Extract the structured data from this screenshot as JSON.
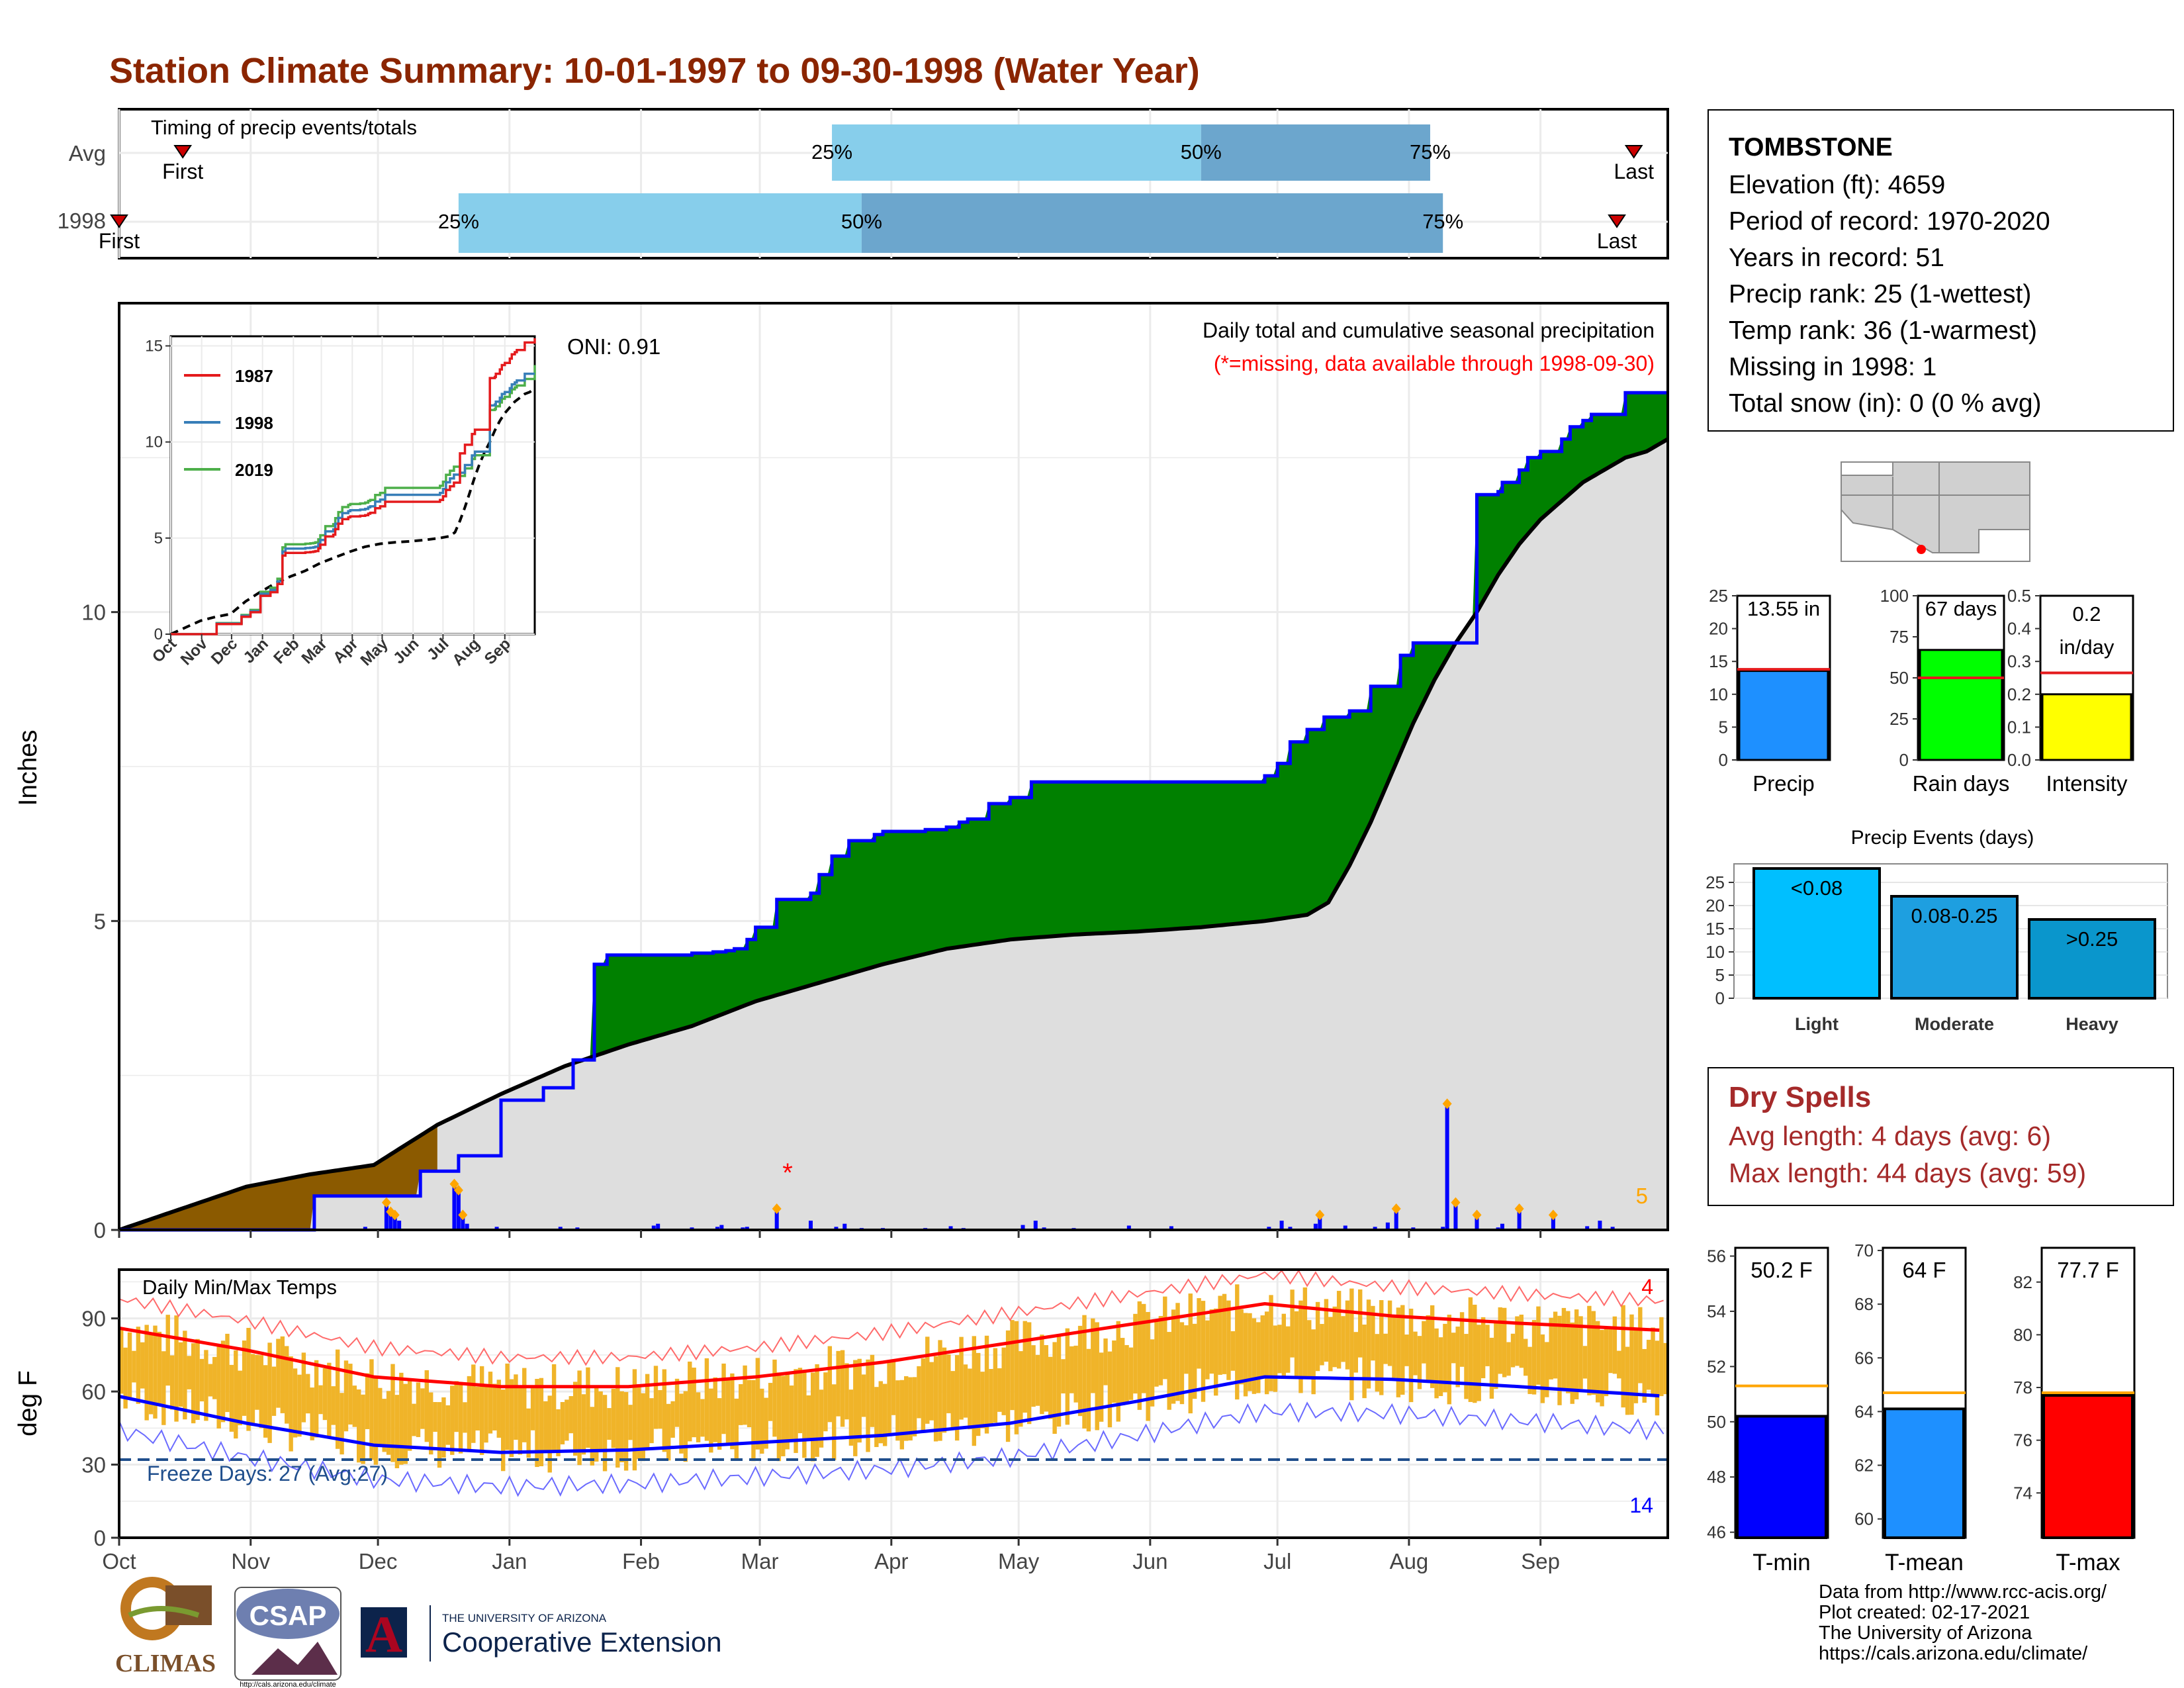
{
  "title": "Station Climate Summary: 10-01-1997 to 09-30-1998 (Water Year)",
  "colors": {
    "title": "#8B2500",
    "accent_red": "#a52a2a",
    "precip_blue": "#1E90FF",
    "rain_green": "#00FF00",
    "intensity_yellow": "#FFFF00",
    "avg_line": "#FFA500"
  },
  "months": [
    "Oct",
    "Nov",
    "Dec",
    "Jan",
    "Feb",
    "Mar",
    "Apr",
    "May",
    "Jun",
    "Jul",
    "Aug",
    "Sep"
  ],
  "timing": {
    "label": "Timing of precip events/totals",
    "rows": [
      {
        "name": "Avg",
        "first_label": "First",
        "last_label": "Last",
        "first_doy": 15,
        "last_doy": 357,
        "q25_doy": 168,
        "q50_doy": 255,
        "q75_doy": 309,
        "q25_label": "25%",
        "q50_label": "50%",
        "q75_label": "75%"
      },
      {
        "name": "1998",
        "first_label": "First",
        "last_label": "Last",
        "first_doy": 0,
        "last_doy": 353,
        "q25_doy": 80,
        "q50_doy": 175,
        "q75_doy": 312,
        "q25_label": "25%",
        "q50_label": "50%",
        "q75_label": "75%"
      }
    ]
  },
  "precip_panel": {
    "ylabel": "Inches",
    "y_ticks": [
      "0",
      "5",
      "10"
    ],
    "header": "Daily total and cumulative seasonal precipitation",
    "missing_note": "(*=missing, data available through 1998-09-30)",
    "oni": "ONI: 0.91",
    "count_label": "5"
  },
  "inset": {
    "y_ticks": [
      "0",
      "5",
      "10",
      "15"
    ],
    "x_ticks": [
      "Oct",
      "Nov",
      "Dec",
      "Jan",
      "Feb",
      "Mar",
      "Apr",
      "May",
      "Jun",
      "Jul",
      "Aug",
      "Sep"
    ],
    "legend": [
      {
        "name": "1987",
        "color": "#e41a1c"
      },
      {
        "name": "1998",
        "color": "#377eb8"
      },
      {
        "name": "2019",
        "color": "#4daf4a"
      }
    ]
  },
  "temp_panel": {
    "ylabel": "deg F",
    "y_ticks": [
      "0",
      "30",
      "60",
      "90"
    ],
    "header": "Daily Min/Max Temps",
    "freeze_label": "Freeze Days: 27 (Avg:27)",
    "hot_count": "4",
    "cold_count": "14"
  },
  "station": {
    "name": "TOMBSTONE",
    "lines": [
      "Elevation (ft): 4659",
      "Period of record: 1970-2020",
      "Years in record: 51",
      "Precip rank: 25 (1-wettest)",
      "Temp rank: 36 (1-warmest)",
      "Missing in 1998: 1",
      "Total snow (in): 0 (0 % avg)"
    ]
  },
  "mini_bars": [
    {
      "id": "precip",
      "label": "Precip",
      "value_label": "13.55 in",
      "value": 13.55,
      "avg": 13.8,
      "ymax": 25,
      "ticks": [
        "0",
        "5",
        "10",
        "15",
        "20",
        "25"
      ],
      "color": "#1E90FF",
      "avg_color": "#e41a1c"
    },
    {
      "id": "raindays",
      "label": "Rain days",
      "value_label": "67 days",
      "value": 67,
      "avg": 50,
      "ymax": 100,
      "ticks": [
        "0",
        "25",
        "50",
        "75",
        "100"
      ],
      "color": "#00FF00",
      "avg_color": "#e41a1c"
    },
    {
      "id": "intensity",
      "label": "Intensity",
      "value_label": "0.2 in/day",
      "value_label_1": "0.2",
      "value_label_2": "in/day",
      "value": 0.2,
      "avg": 0.265,
      "ymax": 0.5,
      "ticks": [
        "0.0",
        "0.1",
        "0.2",
        "0.3",
        "0.4",
        "0.5"
      ],
      "color": "#FFFF00",
      "avg_color": "#e41a1c"
    }
  ],
  "events": {
    "title": "Precip Events (days)",
    "y_ticks": [
      "0",
      "5",
      "10",
      "15",
      "20",
      "25"
    ],
    "bars": [
      {
        "label": "Light",
        "range": "<0.08",
        "value": 28,
        "color": "#00BFFF"
      },
      {
        "label": "Moderate",
        "range": "0.08-0.25",
        "value": 22,
        "color": "#1E9FE0"
      },
      {
        "label": "Heavy",
        "range": ">0.25",
        "value": 17,
        "color": "#0A96CC"
      }
    ]
  },
  "dry_spells": {
    "title": "Dry Spells",
    "avg_line": "Avg length: 4 days (avg: 6)",
    "max_line": "Max length: 44 days (avg: 59)"
  },
  "temp_bars": [
    {
      "label": "T-min",
      "value_label": "50.2 F",
      "value": 50.2,
      "avg": 51.3,
      "ymin": 45.8,
      "ymax": 56.3,
      "ticks": [
        "46",
        "48",
        "50",
        "52",
        "54",
        "56"
      ],
      "color": "#0000FF"
    },
    {
      "label": "T-mean",
      "value_label": "64 F",
      "value": 64.1,
      "avg": 64.7,
      "ymin": 59.3,
      "ymax": 70.1,
      "ticks": [
        "60",
        "62",
        "64",
        "66",
        "68",
        "70"
      ],
      "color": "#1E90FF"
    },
    {
      "label": "T-max",
      "value_label": "77.7 F",
      "value": 77.7,
      "avg": 77.8,
      "ymin": 72.3,
      "ymax": 83.3,
      "ticks": [
        "74",
        "76",
        "78",
        "80",
        "82"
      ],
      "color": "#FF0000"
    }
  ],
  "footer": {
    "lines": [
      "Data from http://www.rcc-acis.org/",
      "Plot created: 02-17-2021",
      "The University of Arizona",
      "https://cals.arizona.edu/climate/"
    ],
    "logos": {
      "climas": "CLIMAS",
      "csap": "CSAP",
      "csap_url": "http://cals.arizona.edu/climate",
      "ua_small": "THE UNIVERSITY OF ARIZONA",
      "ua_big": "Cooperative Extension"
    }
  },
  "chart_data": {
    "type": "area",
    "title": "Daily total and cumulative seasonal precipitation",
    "ylabel": "Inches",
    "ylim": [
      0,
      15
    ],
    "x_unit": "day of water year (0 = Oct 1)",
    "series": [
      {
        "name": "1998 cumulative",
        "x": [
          0,
          30,
          45,
          46,
          60,
          70,
          71,
          80,
          88,
          90,
          100,
          107,
          108,
          112,
          115,
          118,
          125,
          130,
          135,
          140,
          143,
          145,
          148,
          150,
          155,
          160,
          163,
          165,
          168,
          172,
          175,
          178,
          180,
          185,
          190,
          195,
          198,
          200,
          205,
          210,
          215,
          245,
          270,
          273,
          276,
          280,
          284,
          290,
          295,
          300,
          302,
          305,
          310,
          318,
          320,
          325,
          326,
          330,
          332,
          335,
          340,
          342,
          345,
          347,
          350,
          355,
          365
        ],
        "values": [
          0,
          0,
          0,
          0.55,
          0.55,
          0.55,
          0.95,
          1.2,
          1.2,
          2.1,
          2.3,
          2.75,
          2.75,
          4.3,
          4.45,
          4.45,
          4.45,
          4.45,
          4.48,
          4.5,
          4.52,
          4.55,
          4.7,
          4.9,
          5.35,
          5.35,
          5.45,
          5.75,
          6.05,
          6.3,
          6.3,
          6.4,
          6.45,
          6.45,
          6.48,
          6.52,
          6.6,
          6.65,
          6.9,
          7.0,
          7.25,
          7.25,
          7.35,
          7.55,
          7.9,
          8.1,
          8.3,
          8.4,
          8.8,
          8.8,
          9.3,
          9.5,
          9.5,
          9.5,
          11.9,
          11.95,
          12.1,
          12.3,
          12.5,
          12.6,
          12.8,
          13.0,
          13.1,
          13.2,
          13.2,
          13.55,
          13.55
        ]
      },
      {
        "name": "Avg cumulative",
        "x": [
          0,
          15,
          30,
          45,
          60,
          75,
          90,
          105,
          120,
          135,
          150,
          165,
          180,
          195,
          210,
          225,
          240,
          255,
          270,
          280,
          285,
          290,
          295,
          300,
          305,
          310,
          315,
          320,
          325,
          330,
          335,
          340,
          345,
          350,
          355,
          360,
          365
        ],
        "values": [
          0,
          0.35,
          0.7,
          0.9,
          1.05,
          1.7,
          2.2,
          2.65,
          3.0,
          3.3,
          3.7,
          4.0,
          4.3,
          4.55,
          4.7,
          4.78,
          4.83,
          4.9,
          5.0,
          5.1,
          5.3,
          5.9,
          6.6,
          7.4,
          8.2,
          8.9,
          9.5,
          10.0,
          10.6,
          11.1,
          11.5,
          11.8,
          12.1,
          12.3,
          12.5,
          12.6,
          12.8
        ]
      }
    ],
    "daily_precip": {
      "x": [
        58,
        63,
        64,
        65,
        66,
        79,
        80,
        81,
        82,
        89,
        104,
        108,
        126,
        127,
        135,
        141,
        142,
        147,
        148,
        155,
        163,
        169,
        171,
        175,
        180,
        190,
        196,
        199,
        213,
        216,
        218,
        225,
        238,
        248,
        271,
        274,
        276,
        282,
        283,
        289,
        296,
        299,
        301,
        305,
        312,
        313,
        315,
        320,
        325,
        326,
        330,
        338,
        346,
        349,
        352
      ],
      "values": [
        0.05,
        0.4,
        0.25,
        0.2,
        0.15,
        0.7,
        0.6,
        0.2,
        0.1,
        0.05,
        0.05,
        0.04,
        0.07,
        0.1,
        0.04,
        0.05,
        0.08,
        0.04,
        0.05,
        0.3,
        0.15,
        0.05,
        0.1,
        0.03,
        0.03,
        0.03,
        0.06,
        0.03,
        0.08,
        0.15,
        0.04,
        0.03,
        0.07,
        0.06,
        0.05,
        0.15,
        0.05,
        0.1,
        0.2,
        0.07,
        0.05,
        0.12,
        0.3,
        0.04,
        0.05,
        2.0,
        0.4,
        0.2,
        0.04,
        0.1,
        0.3,
        0.2,
        0.06,
        0.15,
        0.05
      ]
    },
    "temp_series": [
      {
        "name": "Avg max",
        "x": [
          0,
          30,
          60,
          90,
          120,
          150,
          180,
          210,
          240,
          270,
          300,
          330,
          365
        ],
        "values": [
          86,
          77,
          66,
          62,
          62,
          66,
          72,
          80,
          88,
          96,
          91,
          88,
          85
        ]
      },
      {
        "name": "Avg min",
        "x": [
          0,
          30,
          60,
          90,
          120,
          150,
          180,
          210,
          240,
          270,
          300,
          330,
          365
        ],
        "values": [
          58,
          47,
          38,
          35,
          36,
          39,
          42,
          47,
          56,
          66,
          65,
          62,
          58
        ]
      }
    ],
    "temp_ylim": [
      0,
      110
    ]
  }
}
